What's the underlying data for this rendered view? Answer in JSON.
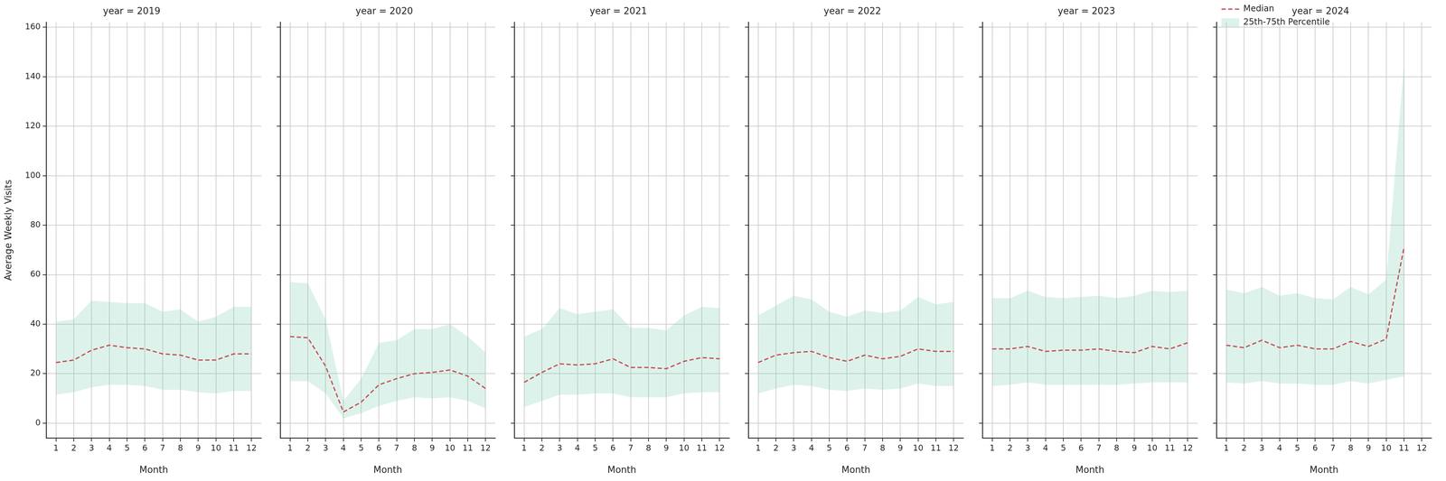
{
  "chart_data": [
    {
      "type": "line",
      "title": "year = 2019",
      "x_label": "Month",
      "y_label": "Average Weekly Visits",
      "x": [
        1,
        2,
        3,
        4,
        5,
        6,
        7,
        8,
        9,
        10,
        11,
        12
      ],
      "xlim": [
        0.45,
        12.55
      ],
      "xticks": [
        1,
        2,
        3,
        4,
        5,
        6,
        7,
        8,
        9,
        10,
        11,
        12
      ],
      "ylim": [
        -6,
        162
      ],
      "yticks": [
        0,
        20,
        40,
        60,
        80,
        100,
        120,
        140,
        160
      ],
      "grid": true,
      "legend": "none",
      "tick_labels": true,
      "series": [
        {
          "name": "Median",
          "color": "#c44e52",
          "line_style": "dashed",
          "values": [
            24.5,
            25.5,
            29.5,
            31.5,
            30.5,
            30,
            28,
            27.5,
            25.5,
            25.5,
            28,
            28
          ]
        },
        {
          "name": "25th-75th Percentile",
          "type": "band",
          "color": "#66c2a5",
          "lower": [
            11.5,
            12.5,
            14.5,
            15.5,
            15.5,
            15,
            13.5,
            13.5,
            12.5,
            12,
            13,
            13
          ],
          "upper": [
            41,
            42,
            49.5,
            49,
            48.5,
            48.5,
            45,
            46,
            41,
            43,
            47,
            47
          ]
        }
      ]
    },
    {
      "type": "line",
      "title": "year = 2020",
      "x_label": "Month",
      "x": [
        1,
        2,
        3,
        4,
        5,
        6,
        7,
        8,
        9,
        10,
        11,
        12
      ],
      "xlim": [
        0.45,
        12.55
      ],
      "xticks": [
        1,
        2,
        3,
        4,
        5,
        6,
        7,
        8,
        9,
        10,
        11,
        12
      ],
      "ylim": [
        -6,
        162
      ],
      "yticks": [
        0,
        20,
        40,
        60,
        80,
        100,
        120,
        140,
        160
      ],
      "grid": true,
      "legend": "none",
      "tick_labels": "x",
      "series": [
        {
          "name": "Median",
          "color": "#c44e52",
          "line_style": "dashed",
          "values": [
            35,
            34.5,
            23,
            4.5,
            8.5,
            15.5,
            18,
            20,
            20.5,
            21.5,
            19,
            14
          ]
        },
        {
          "name": "25th-75th Percentile",
          "type": "band",
          "color": "#66c2a5",
          "lower": [
            17,
            17,
            12,
            2,
            4,
            7,
            9,
            10.5,
            10,
            10.5,
            9,
            6
          ],
          "upper": [
            57,
            56.5,
            42,
            9,
            18,
            32.5,
            33.5,
            38,
            38,
            40,
            35,
            28.5
          ]
        }
      ]
    },
    {
      "type": "line",
      "title": "year = 2021",
      "x_label": "Month",
      "x": [
        1,
        2,
        3,
        4,
        5,
        6,
        7,
        8,
        9,
        10,
        11,
        12
      ],
      "xlim": [
        0.45,
        12.55
      ],
      "xticks": [
        1,
        2,
        3,
        4,
        5,
        6,
        7,
        8,
        9,
        10,
        11,
        12
      ],
      "ylim": [
        -6,
        162
      ],
      "yticks": [
        0,
        20,
        40,
        60,
        80,
        100,
        120,
        140,
        160
      ],
      "grid": true,
      "legend": "none",
      "tick_labels": "x",
      "series": [
        {
          "name": "Median",
          "color": "#c44e52",
          "line_style": "dashed",
          "values": [
            16.5,
            20.5,
            24,
            23.5,
            24,
            26,
            22.5,
            22.5,
            22,
            25,
            26.5,
            26
          ]
        },
        {
          "name": "25th-75th Percentile",
          "type": "band",
          "color": "#66c2a5",
          "lower": [
            6.5,
            9,
            11.5,
            11.5,
            12,
            12,
            10.5,
            10.5,
            10.5,
            12,
            12.5,
            12.5
          ],
          "upper": [
            35,
            38,
            46.5,
            44,
            45,
            46,
            38.5,
            38.5,
            37.5,
            43.5,
            47,
            46.5
          ]
        }
      ]
    },
    {
      "type": "line",
      "title": "year = 2022",
      "x_label": "Month",
      "x": [
        1,
        2,
        3,
        4,
        5,
        6,
        7,
        8,
        9,
        10,
        11,
        12
      ],
      "xlim": [
        0.45,
        12.55
      ],
      "xticks": [
        1,
        2,
        3,
        4,
        5,
        6,
        7,
        8,
        9,
        10,
        11,
        12
      ],
      "ylim": [
        -6,
        162
      ],
      "yticks": [
        0,
        20,
        40,
        60,
        80,
        100,
        120,
        140,
        160
      ],
      "grid": true,
      "legend": "none",
      "tick_labels": "x",
      "series": [
        {
          "name": "Median",
          "color": "#c44e52",
          "line_style": "dashed",
          "values": [
            24.5,
            27.5,
            28.5,
            29,
            26.5,
            25,
            27.5,
            26,
            27,
            30,
            29,
            29
          ]
        },
        {
          "name": "25th-75th Percentile",
          "type": "band",
          "color": "#66c2a5",
          "lower": [
            12,
            14,
            15.5,
            15,
            13.5,
            13,
            14,
            13.5,
            14,
            16,
            15,
            15
          ],
          "upper": [
            43.5,
            47.5,
            51.5,
            50,
            45,
            43,
            45.5,
            44.5,
            45.5,
            51,
            48,
            49
          ]
        }
      ]
    },
    {
      "type": "line",
      "title": "year = 2023",
      "x_label": "Month",
      "x": [
        1,
        2,
        3,
        4,
        5,
        6,
        7,
        8,
        9,
        10,
        11,
        12
      ],
      "xlim": [
        0.45,
        12.55
      ],
      "xticks": [
        1,
        2,
        3,
        4,
        5,
        6,
        7,
        8,
        9,
        10,
        11,
        12
      ],
      "ylim": [
        -6,
        162
      ],
      "yticks": [
        0,
        20,
        40,
        60,
        80,
        100,
        120,
        140,
        160
      ],
      "grid": true,
      "legend": "none",
      "tick_labels": "x",
      "series": [
        {
          "name": "Median",
          "color": "#c44e52",
          "line_style": "dashed",
          "values": [
            30,
            30,
            31,
            29,
            29.5,
            29.5,
            30,
            29,
            28.5,
            31,
            30,
            32.5
          ]
        },
        {
          "name": "25th-75th Percentile",
          "type": "band",
          "color": "#66c2a5",
          "lower": [
            15,
            15.5,
            16.5,
            15.5,
            15.5,
            15.5,
            15.5,
            15.5,
            16,
            16.5,
            16.5,
            16.5
          ],
          "upper": [
            50.5,
            50.5,
            53.5,
            51,
            50.5,
            51,
            51.5,
            50.5,
            51.5,
            53.5,
            53,
            53.5
          ]
        }
      ]
    },
    {
      "type": "line",
      "title": "year = 2024",
      "x_label": "Month",
      "x": [
        1,
        2,
        3,
        4,
        5,
        6,
        7,
        8,
        9,
        10,
        11,
        12
      ],
      "xlim": [
        0.45,
        12.55
      ],
      "xticks": [
        1,
        2,
        3,
        4,
        5,
        6,
        7,
        8,
        9,
        10,
        11,
        12
      ],
      "ylim": [
        -6,
        162
      ],
      "yticks": [
        0,
        20,
        40,
        60,
        80,
        100,
        120,
        140,
        160
      ],
      "grid": true,
      "legend": "upper left",
      "tick_labels": "x",
      "series": [
        {
          "name": "Median",
          "color": "#c44e52",
          "line_style": "dashed",
          "values": [
            31.5,
            30.5,
            33.5,
            30.5,
            31.5,
            30,
            30,
            33,
            31,
            34,
            71,
            null
          ]
        },
        {
          "name": "25th-75th Percentile",
          "type": "band",
          "color": "#66c2a5",
          "lower": [
            16.5,
            16,
            17,
            16,
            16,
            15.5,
            15.5,
            17,
            16,
            17.5,
            19,
            null
          ],
          "upper": [
            54,
            52.5,
            55,
            51.5,
            52.5,
            50.5,
            50,
            55,
            52,
            58,
            145,
            null
          ]
        }
      ]
    }
  ]
}
